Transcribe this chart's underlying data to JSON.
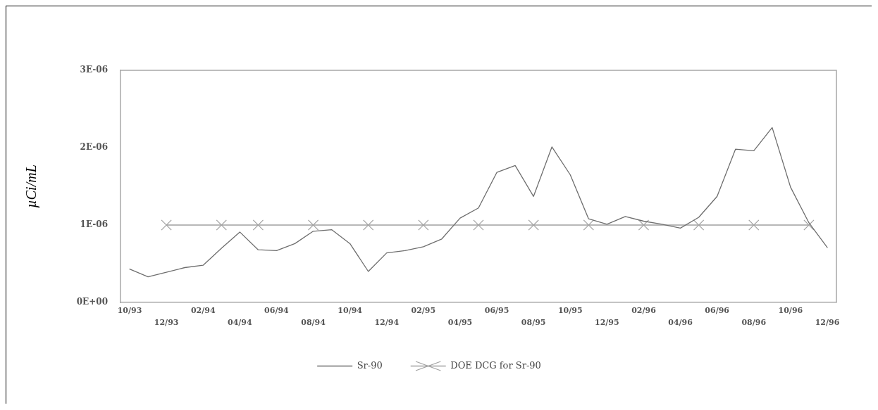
{
  "chart_data": {
    "type": "line",
    "ylabel": "µCi/mL",
    "categories": [
      "10/93",
      null,
      "12/93",
      null,
      "02/94",
      null,
      "04/94",
      null,
      "06/94",
      null,
      "08/94",
      null,
      "10/94",
      null,
      "12/94",
      null,
      "02/95",
      null,
      "04/95",
      null,
      "06/95",
      null,
      "08/95",
      null,
      "10/95",
      null,
      "12/95",
      null,
      "02/96",
      null,
      "04/96",
      null,
      "06/96",
      null,
      "08/96",
      null,
      "10/96",
      null,
      "12/96"
    ],
    "series": [
      {
        "name": "Sr-90",
        "color": "#6e6e6e",
        "marker": "none",
        "values": [
          4.3e-07,
          3.3e-07,
          3.9e-07,
          4.5e-07,
          4.8e-07,
          7e-07,
          9.1e-07,
          6.8e-07,
          6.7e-07,
          7.6e-07,
          9.2e-07,
          9.4e-07,
          7.6e-07,
          4e-07,
          6.4e-07,
          6.7e-07,
          7.2e-07,
          8.2e-07,
          1.09e-06,
          1.22e-06,
          1.68e-06,
          1.77e-06,
          1.37e-06,
          2.01e-06,
          1.65e-06,
          1.08e-06,
          1.01e-06,
          1.11e-06,
          1.05e-06,
          1.01e-06,
          9.6e-07,
          1.1e-06,
          1.37e-06,
          1.98e-06,
          1.96e-06,
          2.26e-06,
          1.49e-06,
          1.03e-06,
          7.1e-07
        ]
      },
      {
        "name": "DOE DCG for Sr-90",
        "color": "#a0a0a0",
        "marker": "cross",
        "values": [
          null,
          null,
          1e-06,
          null,
          null,
          1e-06,
          null,
          1e-06,
          null,
          null,
          1e-06,
          null,
          null,
          1e-06,
          null,
          null,
          1e-06,
          null,
          null,
          1e-06,
          null,
          null,
          1e-06,
          null,
          null,
          1e-06,
          null,
          null,
          1e-06,
          null,
          null,
          1e-06,
          null,
          null,
          1e-06,
          null,
          null,
          1e-06,
          null
        ]
      }
    ],
    "ylim": [
      0,
      3e-06
    ],
    "yticks": [
      {
        "value": 0,
        "label": "0E+00"
      },
      {
        "value": 1e-06,
        "label": "1E-06"
      },
      {
        "value": 2e-06,
        "label": "2E-06"
      },
      {
        "value": 3e-06,
        "label": "3E-06"
      }
    ],
    "grid": false,
    "legend": "bottom"
  }
}
